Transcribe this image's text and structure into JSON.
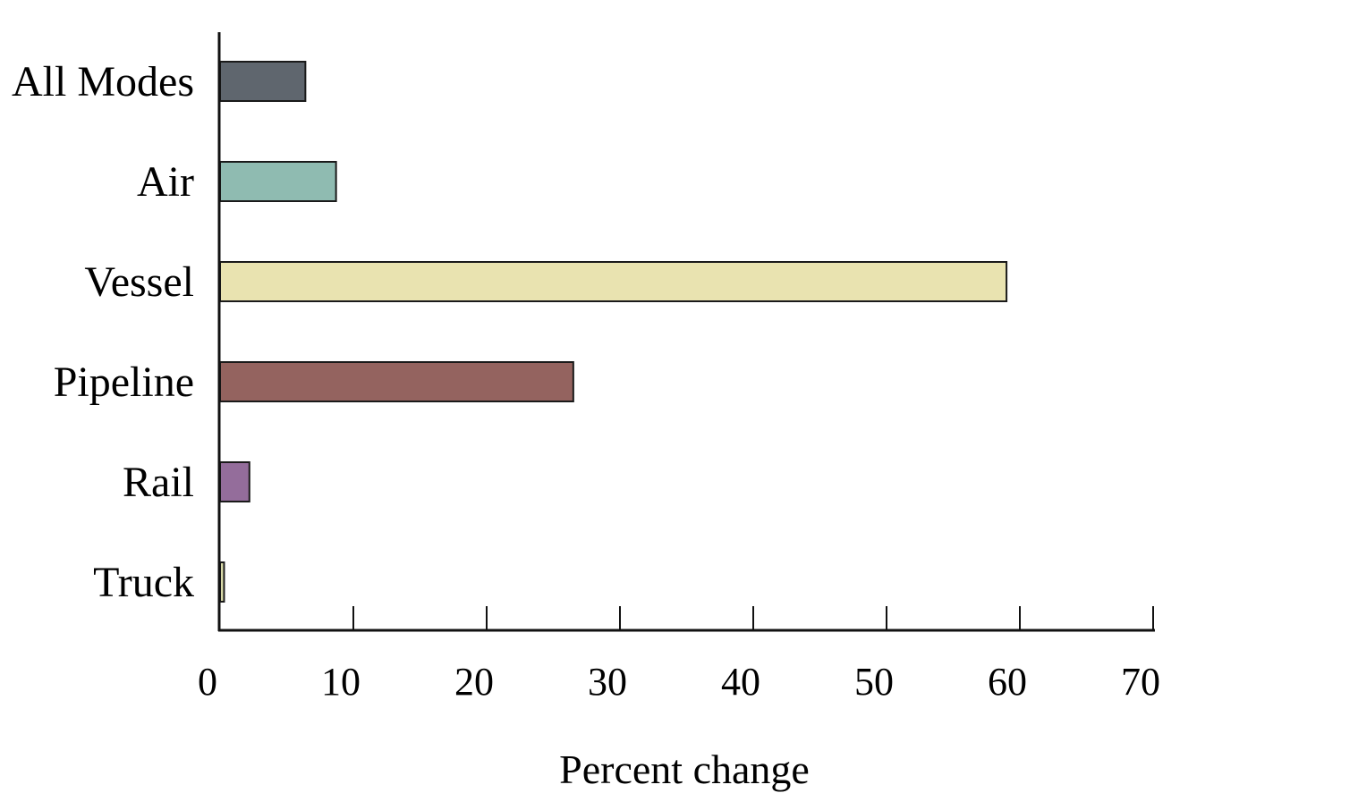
{
  "chart_data": {
    "type": "bar",
    "orientation": "horizontal",
    "categories": [
      "All Modes",
      "Air",
      "Vessel",
      "Pipeline",
      "Rail",
      "Truck"
    ],
    "values": [
      6.4,
      8.7,
      59.0,
      26.5,
      2.2,
      0.3
    ],
    "colors": [
      "#5f666e",
      "#8fbbb1",
      "#e9e3b0",
      "#94635f",
      "#946d9b",
      "#d8d9a8"
    ],
    "title": "",
    "xlabel": "Percent change",
    "ylabel": "",
    "xlim": [
      0,
      70
    ],
    "xticks": [
      0,
      10,
      20,
      30,
      40,
      50,
      60,
      70
    ],
    "grid": false,
    "legend": "none"
  }
}
